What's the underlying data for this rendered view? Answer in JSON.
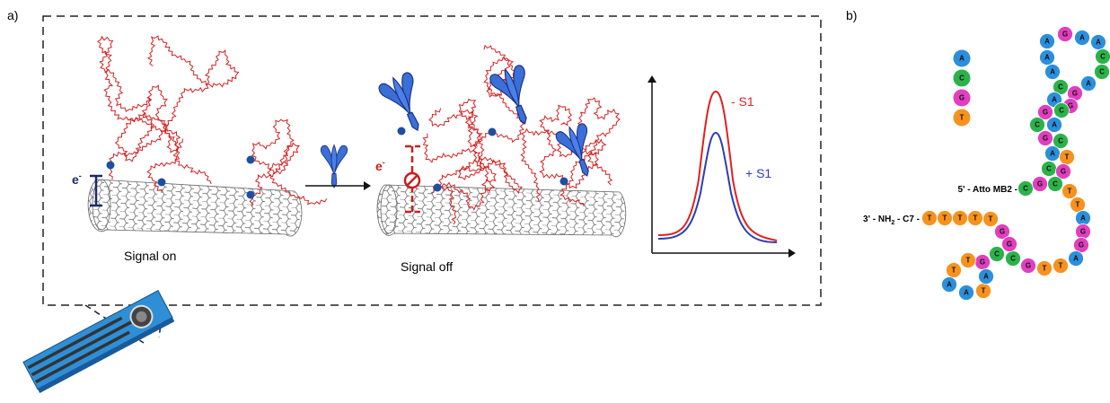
{
  "panel_a": {
    "label": "a)",
    "left_electron": {
      "text": "e",
      "sup": "-"
    },
    "right_electron": {
      "text": "e",
      "sup": "-"
    },
    "signal_on": "Signal on",
    "signal_off": "Signal off",
    "curve_minus": "- S1",
    "curve_plus": "+ S1"
  },
  "panel_b": {
    "label": "b)",
    "legend": [
      {
        "letter": "A",
        "color": "#2b8fdc"
      },
      {
        "letter": "C",
        "color": "#2bb34a"
      },
      {
        "letter": "G",
        "color": "#e03fbf"
      },
      {
        "letter": "T",
        "color": "#f7921e"
      }
    ],
    "five_prime_label": "5' - Atto MB2 -",
    "three_prime_label": {
      "before": "3' - NH",
      "sub": "2",
      "after": " - C7 -"
    },
    "nucleotides": [
      "A",
      "G",
      "A",
      "A",
      "A",
      "C",
      "A",
      "C",
      "A",
      "C",
      "G",
      "A",
      "G",
      "G",
      "C",
      "C",
      "A",
      "G",
      "C",
      "A",
      "T",
      "C",
      "G",
      "C",
      "G",
      "C",
      "T",
      "T",
      "A",
      "G",
      "G",
      "A",
      "T",
      "T",
      "G",
      "C",
      "T",
      "T",
      "T",
      "T",
      "T",
      "G",
      "G",
      "C",
      "G",
      "T",
      "T",
      "A",
      "A",
      "T",
      "A"
    ]
  }
}
